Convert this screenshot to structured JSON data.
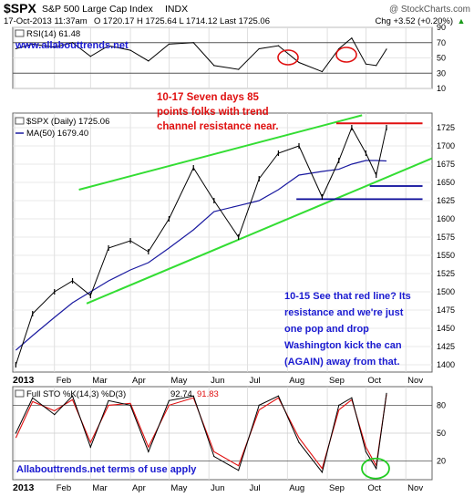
{
  "header": {
    "ticker": "$SPX",
    "name": "S&P 500 Large Cap Index",
    "exchange": "INDX",
    "watermark": "@ StockCharts.com",
    "datetime": "17-Oct-2013 11:37am",
    "ohlc": "O 1720.17  H 1725.64  L 1714.12  Last 1725.06",
    "change": "Chg +3.52 (+0.20%)",
    "change_arrow": "▲"
  },
  "rsi_panel": {
    "legend": "RSI(14) 61.48",
    "site": "www.allabouttrends.net",
    "axis_ticks": [
      "90",
      "70",
      "50",
      "30",
      "10"
    ]
  },
  "price_panel": {
    "legend_price": "$SPX (Daily) 1725.06",
    "legend_ma": "MA(50) 1679.40",
    "axis_ticks": [
      "1725",
      "1700",
      "1675",
      "1650",
      "1625",
      "1600",
      "1575",
      "1550",
      "1525",
      "1500",
      "1475",
      "1450",
      "1425",
      "1400"
    ],
    "annotation_top": [
      "10-17 Seven days 85",
      "points folks with trend",
      "channel resistance near."
    ],
    "annotation_bottom": [
      "10-15 See that red line? Its",
      "resistance and we're just",
      "one pop and drop",
      "Washington kick the can",
      "(AGAIN) away from that."
    ],
    "x_labels": [
      "2013",
      "Feb",
      "Mar",
      "Apr",
      "May",
      "Jun",
      "Jul",
      "Aug",
      "Sep",
      "Oct",
      "Nov"
    ]
  },
  "sto_panel": {
    "legend_prefix": "Full STO %K(14,3) %D(3)",
    "k_value": "92.74",
    "d_value": "91.83",
    "terms": "Allabouttrends.net terms of use apply",
    "axis_ticks": [
      "80",
      "50",
      "20"
    ],
    "x_labels": [
      "2013",
      "Feb",
      "Mar",
      "Apr",
      "May",
      "Jun",
      "Jul",
      "Aug",
      "Sep",
      "Oct",
      "Nov"
    ]
  },
  "colors": {
    "price": "#000000",
    "ma": "#1a1aa0",
    "trend": "#33dd33",
    "resistance": "#e01010",
    "support": "#0a0a9a",
    "annotation_red": "#e01010",
    "annotation_blue": "#1a1ad0",
    "sto_k": "#000000",
    "sto_d": "#e01010",
    "rsi_line": "#000000",
    "circle": "#e01010",
    "circle_green": "#22cc22"
  },
  "chart_data": [
    {
      "type": "line",
      "title": "RSI(14)",
      "ylim": [
        10,
        90
      ],
      "x": [
        "2013-01-02",
        "2013-01-15",
        "2013-02-01",
        "2013-02-15",
        "2013-03-01",
        "2013-03-15",
        "2013-04-01",
        "2013-04-15",
        "2013-05-01",
        "2013-05-20",
        "2013-06-05",
        "2013-06-24",
        "2013-07-10",
        "2013-07-25",
        "2013-08-10",
        "2013-08-28",
        "2013-09-10",
        "2013-09-20",
        "2013-10-01",
        "2013-10-09",
        "2013-10-17"
      ],
      "series": [
        {
          "name": "RSI(14)",
          "values": [
            62,
            68,
            64,
            70,
            52,
            66,
            60,
            46,
            68,
            70,
            40,
            35,
            62,
            66,
            44,
            32,
            62,
            76,
            42,
            40,
            61.48
          ]
        }
      ]
    },
    {
      "type": "line",
      "title": "$SPX (Daily)",
      "ylim": [
        1390,
        1745
      ],
      "x": [
        "2013-01-02",
        "2013-01-15",
        "2013-02-01",
        "2013-02-15",
        "2013-03-01",
        "2013-03-15",
        "2013-04-01",
        "2013-04-15",
        "2013-05-01",
        "2013-05-20",
        "2013-06-05",
        "2013-06-24",
        "2013-07-10",
        "2013-07-25",
        "2013-08-10",
        "2013-08-28",
        "2013-09-10",
        "2013-09-20",
        "2013-10-01",
        "2013-10-09",
        "2013-10-17"
      ],
      "series": [
        {
          "name": "$SPX (Daily)",
          "values": [
            1400,
            1470,
            1500,
            1515,
            1495,
            1560,
            1570,
            1555,
            1600,
            1670,
            1625,
            1575,
            1655,
            1690,
            1700,
            1630,
            1680,
            1725,
            1690,
            1660,
            1725.06
          ]
        },
        {
          "name": "MA(50)",
          "values": [
            1420,
            1440,
            1465,
            1485,
            1500,
            1515,
            1530,
            1540,
            1560,
            1585,
            1610,
            1618,
            1625,
            1640,
            1660,
            1665,
            1668,
            1675,
            1680,
            1680,
            1679.4
          ]
        }
      ]
    },
    {
      "type": "line",
      "title": "Full STO %K(14,3) %D(3)",
      "ylim": [
        0,
        100
      ],
      "x": [
        "2013-01-02",
        "2013-01-15",
        "2013-02-01",
        "2013-02-15",
        "2013-03-01",
        "2013-03-15",
        "2013-04-01",
        "2013-04-15",
        "2013-05-01",
        "2013-05-20",
        "2013-06-05",
        "2013-06-24",
        "2013-07-10",
        "2013-07-25",
        "2013-08-10",
        "2013-08-28",
        "2013-09-10",
        "2013-09-20",
        "2013-10-01",
        "2013-10-09",
        "2013-10-17"
      ],
      "series": [
        {
          "name": "%K(14,3)",
          "values": [
            50,
            88,
            70,
            90,
            35,
            85,
            80,
            30,
            85,
            90,
            25,
            10,
            80,
            90,
            40,
            8,
            80,
            88,
            30,
            12,
            92.74
          ]
        },
        {
          "name": "%D(3)",
          "values": [
            45,
            84,
            74,
            86,
            40,
            80,
            82,
            35,
            80,
            88,
            30,
            15,
            75,
            88,
            45,
            12,
            75,
            86,
            35,
            15,
            91.83
          ]
        }
      ]
    }
  ]
}
